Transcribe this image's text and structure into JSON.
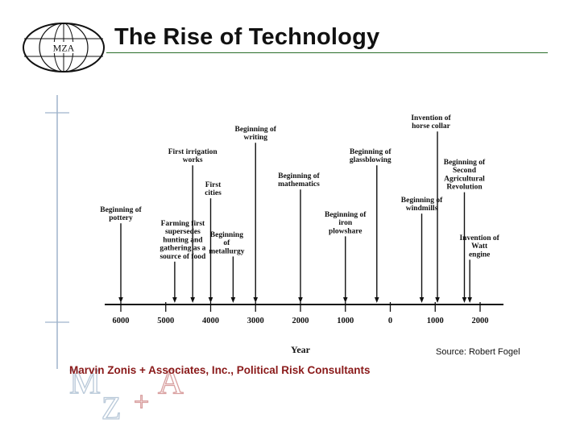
{
  "header": {
    "logo_text": "MZA",
    "title": "The Rise of Technology"
  },
  "timeline": {
    "axis_title": "Year",
    "ticks": [
      {
        "year": -6000,
        "label": "6000"
      },
      {
        "year": -5000,
        "label": "5000"
      },
      {
        "year": -4000,
        "label": "4000"
      },
      {
        "year": -3000,
        "label": "3000"
      },
      {
        "year": -2000,
        "label": "2000"
      },
      {
        "year": -1000,
        "label": "1000"
      },
      {
        "year": 0,
        "label": "0"
      },
      {
        "year": 1000,
        "label": "1000"
      },
      {
        "year": 2000,
        "label": "2000"
      }
    ],
    "events": [
      {
        "year": -6000,
        "lines": [
          "Beginning of",
          "pottery"
        ]
      },
      {
        "year": -4800,
        "lines": [
          "Farming first",
          "supersedes",
          "hunting and",
          "gathering as a",
          "source of food"
        ]
      },
      {
        "year": -4400,
        "lines": [
          "First irrigation",
          "works"
        ]
      },
      {
        "year": -4000,
        "lines": [
          "First",
          "cities"
        ]
      },
      {
        "year": -3500,
        "lines": [
          "Beginning",
          "of",
          "metallurgy"
        ]
      },
      {
        "year": -3000,
        "lines": [
          "Beginning of",
          "writing"
        ]
      },
      {
        "year": -2000,
        "lines": [
          "Beginning of",
          "mathematics"
        ]
      },
      {
        "year": -1000,
        "lines": [
          "Beginning of",
          "iron",
          "plowshare"
        ]
      },
      {
        "year": -300,
        "lines": [
          "Beginning of",
          "glassblowing"
        ]
      },
      {
        "year": 700,
        "lines": [
          "Beginning of",
          "windmills"
        ]
      },
      {
        "year": 1050,
        "lines": [
          "Invention of",
          "horse collar"
        ]
      },
      {
        "year": 1650,
        "lines": [
          "Beginning of",
          "Second",
          "Agricultural",
          "Revolution"
        ]
      },
      {
        "year": 1770,
        "lines": [
          "Invention of",
          "Watt",
          "engine"
        ]
      }
    ]
  },
  "source_note": "Source: Robert Fogel",
  "footer": {
    "company": "Marvin Zonis + Associates, Inc., Political Risk Consultants",
    "watermark_letters": [
      "M",
      "Z",
      "+",
      "A"
    ]
  },
  "colors": {
    "title_rule": "#2a6e2a",
    "footer_text": "#8a1a1a",
    "watermark": "#b9c9d9",
    "rail": "#9fb4cc"
  }
}
